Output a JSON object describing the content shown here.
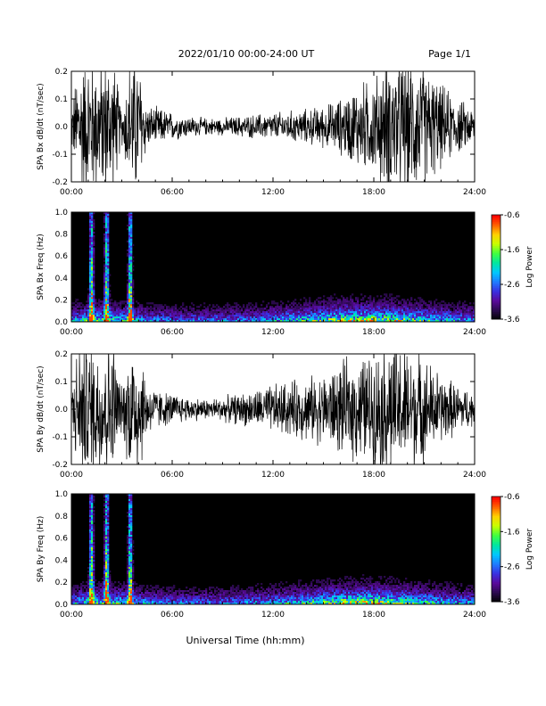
{
  "header": {
    "title": "2022/01/10  00:00-24:00 UT",
    "page": "Page 1/1"
  },
  "footer": {
    "xlabel": "Universal Time (hh:mm)"
  },
  "colors": {
    "trace": "#000000",
    "background": "#000000",
    "colormap": [
      "#000000",
      "#2b0a4d",
      "#5a0a9a",
      "#3a2fe0",
      "#1f7bff",
      "#00c8ff",
      "#00e6a0",
      "#40ff40",
      "#c8ff00",
      "#ffd000",
      "#ff6000",
      "#ff0000"
    ]
  },
  "chart_data": [
    {
      "type": "line",
      "ylabel": "SPA Bx dB/dt (nT/sec)",
      "xlim": [
        0,
        24
      ],
      "ylim": [
        -0.2,
        0.2
      ],
      "xticks": [
        "00:00",
        "06:00",
        "12:00",
        "18:00",
        "24:00"
      ],
      "yticks": [
        "0.2",
        "0.1",
        "0.0",
        "-0.1",
        "-0.2"
      ],
      "envelope": {
        "x": [
          0,
          0.5,
          1.0,
          1.5,
          2.0,
          2.5,
          3.0,
          3.5,
          4.0,
          4.5,
          5.0,
          5.5,
          6.0,
          7.0,
          8.0,
          9.0,
          10.0,
          11.0,
          12.0,
          13.0,
          14.0,
          15.0,
          16.0,
          17.0,
          18.0,
          19.0,
          20.0,
          21.0,
          22.0,
          23.0,
          24.0
        ],
        "amp": [
          0.06,
          0.2,
          0.2,
          0.2,
          0.2,
          0.2,
          0.05,
          0.2,
          0.2,
          0.06,
          0.055,
          0.05,
          0.04,
          0.03,
          0.025,
          0.025,
          0.03,
          0.035,
          0.04,
          0.045,
          0.05,
          0.06,
          0.08,
          0.12,
          0.14,
          0.2,
          0.2,
          0.18,
          0.12,
          0.08,
          0.05
        ]
      }
    },
    {
      "type": "heatmap",
      "ylabel": "SPA Bx Freq (Hz)",
      "colorbar_label": "Log Power",
      "clim": [
        -3.6,
        -0.6
      ],
      "colorbar_ticks": [
        "-0.6",
        "-1.6",
        "-2.6",
        "-3.6"
      ],
      "xlim": [
        0,
        24
      ],
      "ylim": [
        0.0,
        1.0
      ],
      "xticks": [
        "00:00",
        "06:00",
        "12:00",
        "18:00",
        "24:00"
      ],
      "yticks": [
        "1.0",
        "0.8",
        "0.6",
        "0.4",
        "0.2",
        "0.0"
      ],
      "bright_bands_hours": [
        1.2,
        2.1,
        3.5
      ]
    },
    {
      "type": "line",
      "ylabel": "SPA By dB/dt (nT/sec)",
      "xlim": [
        0,
        24
      ],
      "ylim": [
        -0.2,
        0.2
      ],
      "xticks": [
        "00:00",
        "06:00",
        "12:00",
        "18:00",
        "24:00"
      ],
      "yticks": [
        "0.2",
        "0.1",
        "0.0",
        "-0.1",
        "-0.2"
      ],
      "envelope": {
        "x": [
          0,
          0.5,
          1.0,
          1.5,
          2.0,
          2.5,
          3.0,
          3.5,
          4.0,
          4.5,
          5.0,
          5.5,
          6.0,
          7.0,
          8.0,
          9.0,
          10.0,
          11.0,
          12.0,
          13.0,
          14.0,
          15.0,
          16.0,
          17.0,
          18.0,
          19.0,
          20.0,
          21.0,
          22.0,
          23.0,
          24.0
        ],
        "amp": [
          0.08,
          0.2,
          0.2,
          0.2,
          0.2,
          0.2,
          0.06,
          0.2,
          0.2,
          0.08,
          0.06,
          0.05,
          0.045,
          0.035,
          0.03,
          0.035,
          0.045,
          0.055,
          0.07,
          0.08,
          0.09,
          0.1,
          0.13,
          0.15,
          0.16,
          0.2,
          0.18,
          0.15,
          0.1,
          0.07,
          0.05
        ]
      }
    },
    {
      "type": "heatmap",
      "ylabel": "SPA By Freq (Hz)",
      "colorbar_label": "Log Power",
      "clim": [
        -3.6,
        -0.6
      ],
      "colorbar_ticks": [
        "-0.6",
        "-1.6",
        "-2.6",
        "-3.6"
      ],
      "xlim": [
        0,
        24
      ],
      "ylim": [
        0.0,
        1.0
      ],
      "xticks": [
        "00:00",
        "06:00",
        "12:00",
        "18:00",
        "24:00"
      ],
      "yticks": [
        "1.0",
        "0.8",
        "0.6",
        "0.4",
        "0.2",
        "0.0"
      ],
      "bright_bands_hours": [
        1.2,
        2.1,
        3.5
      ]
    }
  ]
}
